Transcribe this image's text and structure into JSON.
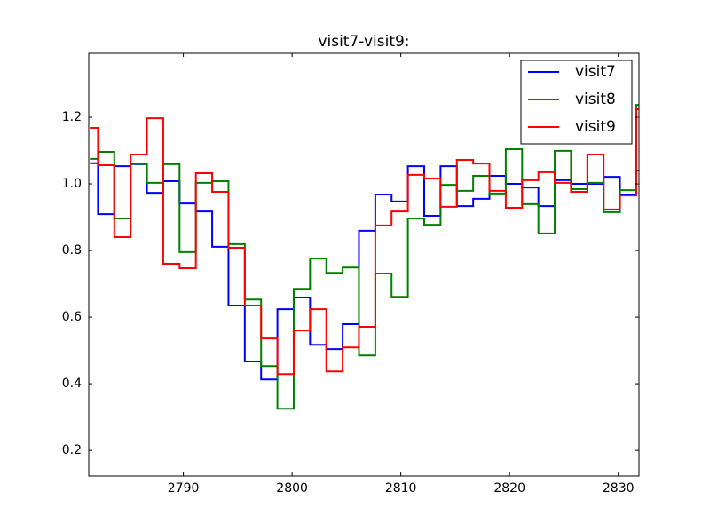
{
  "chart_data": {
    "type": "step",
    "title": "visit7-visit9:",
    "x": [
      2781.4,
      2782.9,
      2784.4,
      2785.9,
      2787.4,
      2788.9,
      2790.4,
      2791.9,
      2793.4,
      2794.9,
      2796.4,
      2797.9,
      2799.4,
      2800.9,
      2802.4,
      2803.9,
      2805.4,
      2806.9,
      2808.4,
      2809.9,
      2811.4,
      2812.9,
      2814.4,
      2815.9,
      2817.4,
      2818.9,
      2820.4,
      2821.9,
      2823.4,
      2824.9,
      2826.4,
      2827.9,
      2829.4,
      2830.9,
      2832.4
    ],
    "series": [
      {
        "name": "visit7",
        "color": "#0000ff",
        "values": [
          1.062,
          0.909,
          1.053,
          1.059,
          0.973,
          1.008,
          0.941,
          0.917,
          0.811,
          0.635,
          0.467,
          0.413,
          0.624,
          0.659,
          0.517,
          0.504,
          0.579,
          0.859,
          0.968,
          0.947,
          1.053,
          0.904,
          1.053,
          0.933,
          0.955,
          1.024,
          1.0,
          0.989,
          0.933,
          1.011,
          1.0,
          1.0,
          1.021,
          0.968,
          1.04
        ]
      },
      {
        "name": "visit8",
        "color": "#008000",
        "values": [
          1.075,
          1.096,
          0.896,
          1.06,
          1.003,
          1.059,
          0.795,
          1.003,
          1.008,
          0.819,
          0.653,
          0.453,
          0.325,
          0.685,
          0.776,
          0.733,
          0.749,
          0.485,
          0.731,
          0.661,
          0.896,
          0.877,
          0.997,
          0.979,
          1.024,
          0.971,
          1.104,
          0.939,
          0.851,
          1.099,
          0.984,
          1.003,
          0.915,
          0.981,
          1.237
        ]
      },
      {
        "name": "visit9",
        "color": "#ff0000",
        "values": [
          1.168,
          1.056,
          0.84,
          1.088,
          1.197,
          0.76,
          0.747,
          1.032,
          0.976,
          0.808,
          0.635,
          0.536,
          0.429,
          0.56,
          0.624,
          0.437,
          0.509,
          0.571,
          0.875,
          0.917,
          1.027,
          1.016,
          0.931,
          1.072,
          1.061,
          0.979,
          0.928,
          1.011,
          1.035,
          1.003,
          0.976,
          1.088,
          0.923,
          0.965,
          1.224
        ]
      }
    ],
    "xlim": [
      2781.3,
      2831.9
    ],
    "xticks": [
      2790,
      2800,
      2810,
      2820,
      2830
    ],
    "ylim": [
      0.123,
      1.392
    ],
    "yticks": [
      0.2,
      0.4,
      0.6,
      0.8,
      {
        "value": 1,
        "label": "1.0"
      },
      1.2
    ],
    "legend": "upper right"
  }
}
